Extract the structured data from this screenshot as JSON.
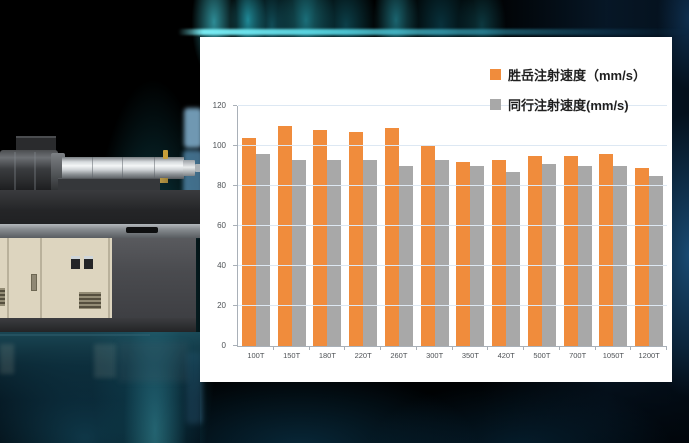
{
  "scene": {
    "description_left": "injection-molding-machine-photo",
    "background_accent_color": "#2bd0e2",
    "panel_background": "#ffffff"
  },
  "chart_data": {
    "type": "bar",
    "title": "",
    "xlabel": "",
    "ylabel": "",
    "categories": [
      "100T",
      "150T",
      "180T",
      "220T",
      "260T",
      "300T",
      "350T",
      "420T",
      "500T",
      "700T",
      "1050T",
      "1200T"
    ],
    "series": [
      {
        "key": "shengyue",
        "name": "胜岳注射速度（mm/s）",
        "color": "#F08C3C",
        "values": [
          104,
          110,
          108,
          107,
          109,
          100,
          92,
          93,
          95,
          95,
          96,
          89
        ]
      },
      {
        "key": "peer",
        "name": "同行注射速度(mm/s)",
        "color": "#A8A8A8",
        "values": [
          96,
          93,
          93,
          93,
          90,
          93,
          90,
          87,
          91,
          90,
          90,
          85
        ]
      }
    ],
    "ylim": [
      0,
      120
    ],
    "yticks": [
      0,
      20,
      40,
      60,
      80,
      100,
      120
    ],
    "grid": true,
    "legend_position": "top-right",
    "gridline_color": "#dde8f3",
    "axis_color": "#a9b0b8"
  }
}
